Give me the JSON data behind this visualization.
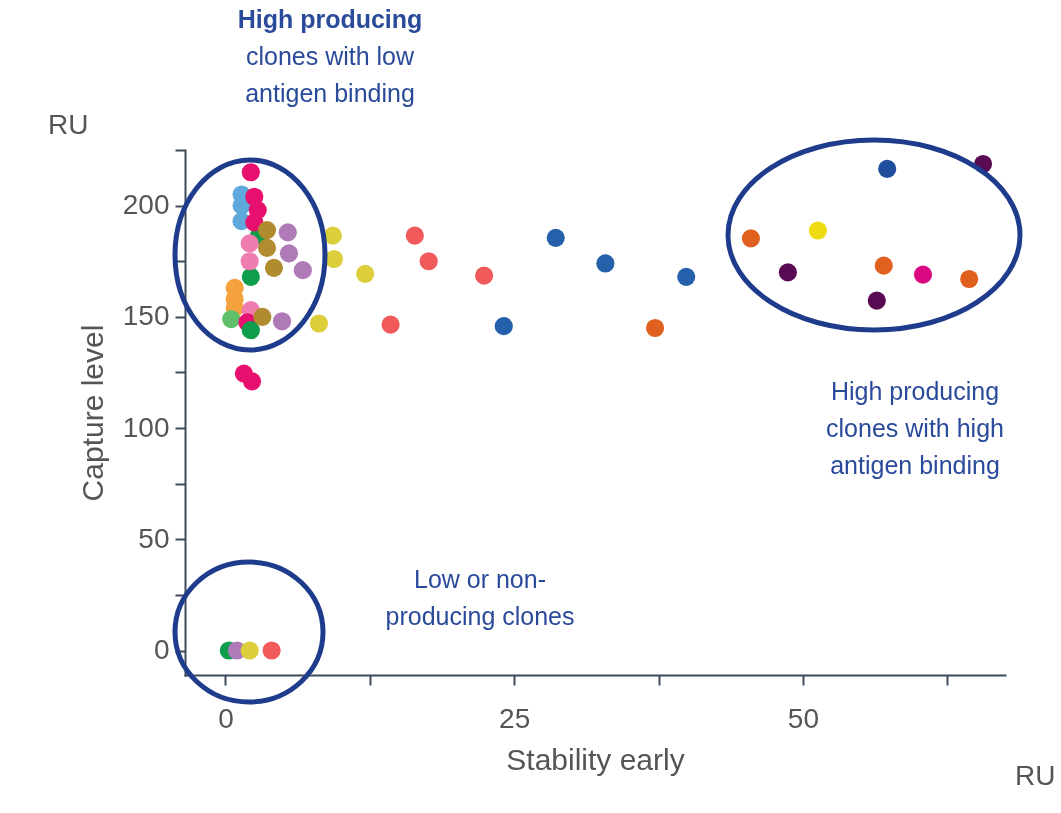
{
  "chart_data": {
    "type": "scatter",
    "xlabel": "Stability early",
    "ylabel": "Capture level",
    "xlim": [
      -3.5,
      67.5
    ],
    "ylim": [
      -11,
      225
    ],
    "xticks": [
      0,
      {
        "value": 12.5,
        "label": null
      },
      25,
      {
        "value": 37.5,
        "label": null
      },
      50,
      {
        "value": 62.5,
        "label": null
      }
    ],
    "yticks": [
      0,
      {
        "value": 25,
        "label": null
      },
      50,
      {
        "value": 75,
        "label": null
      },
      100,
      {
        "value": 125,
        "label": null
      },
      150,
      {
        "value": 175,
        "label": null
      },
      200,
      {
        "value": 225,
        "label": null
      }
    ],
    "grid": false,
    "marker": "circle",
    "annotations": [
      "RU",
      "RU",
      "High producing\nclones with low\nantigen binding",
      "High producing\nclones with high\nantigen binding",
      "Low or non-\nproducing clones"
    ],
    "series": [
      {
        "x": [
          0.8,
          0.8,
          0.8,
          0.5,
          2.2,
          2.2,
          2.9,
          2.1,
          2.1,
          1.4,
          1.4,
          1.4,
          2.5,
          2.8,
          2.5,
          2.2,
          1.9,
          2.2,
          3.6,
          3.6,
          4.2,
          3.2,
          5.4,
          5.5,
          6.7,
          4.9,
          1.6,
          2.3,
          8.1,
          9.3,
          9.4,
          12.1,
          16.4,
          17.6,
          22.4,
          14.3,
          28.6,
          32.9,
          39.9,
          24.1,
          37.2,
          57.3,
          65.6,
          45.5,
          51.3,
          48.7,
          57.0,
          60.4,
          64.4,
          56.4,
          0.3,
          1.0,
          2.1,
          4.0
        ],
        "values": [
          163,
          158,
          154,
          149,
          153,
          168,
          186.5,
          183,
          175,
          205,
          200,
          193,
          204,
          198,
          192.5,
          215,
          147.5,
          144,
          189,
          181,
          172,
          150,
          188,
          178.5,
          171,
          148,
          124.5,
          121,
          147,
          186.5,
          176,
          169.3,
          186.5,
          175,
          168.5,
          146.5,
          185.5,
          174,
          168,
          145.8,
          145,
          216.5,
          218.7,
          185.3,
          188.8,
          170,
          173,
          169,
          167,
          157.3,
          0,
          0,
          0,
          0
        ],
        "colors": [
          "#f5a23c",
          "#f5a23c",
          "#f5a23c",
          "#5fbf6a",
          "#f07db0",
          "#0e9d4a",
          "#0e9d4a",
          "#f07db0",
          "#f07db0",
          "#5fa8dc",
          "#5fa8dc",
          "#5fa8dc",
          "#e8106e",
          "#e8106e",
          "#e8106e",
          "#e8106e",
          "#e8106e",
          "#0e9d4a",
          "#b08c2e",
          "#b08c2e",
          "#b08c2e",
          "#b08c2e",
          "#b07ab8",
          "#b07ab8",
          "#b07ab8",
          "#b07ab8",
          "#e8106e",
          "#e8106e",
          "#ddcf3c",
          "#ddcf3c",
          "#ddcf3c",
          "#ddcf3c",
          "#f05a5a",
          "#f05a5a",
          "#f05a5a",
          "#f05a5a",
          "#2560aa",
          "#2560aa",
          "#2560aa",
          "#2560aa",
          "#e06020",
          "#1f4f9c",
          "#5a0a52",
          "#e06020",
          "#efdc10",
          "#5a0a52",
          "#e06020",
          "#dc0a82",
          "#e06020",
          "#5a0a52",
          "#0e9d4a",
          "#b07ab8",
          "#ddcf3c",
          "#f05a5a"
        ]
      }
    ]
  }
}
